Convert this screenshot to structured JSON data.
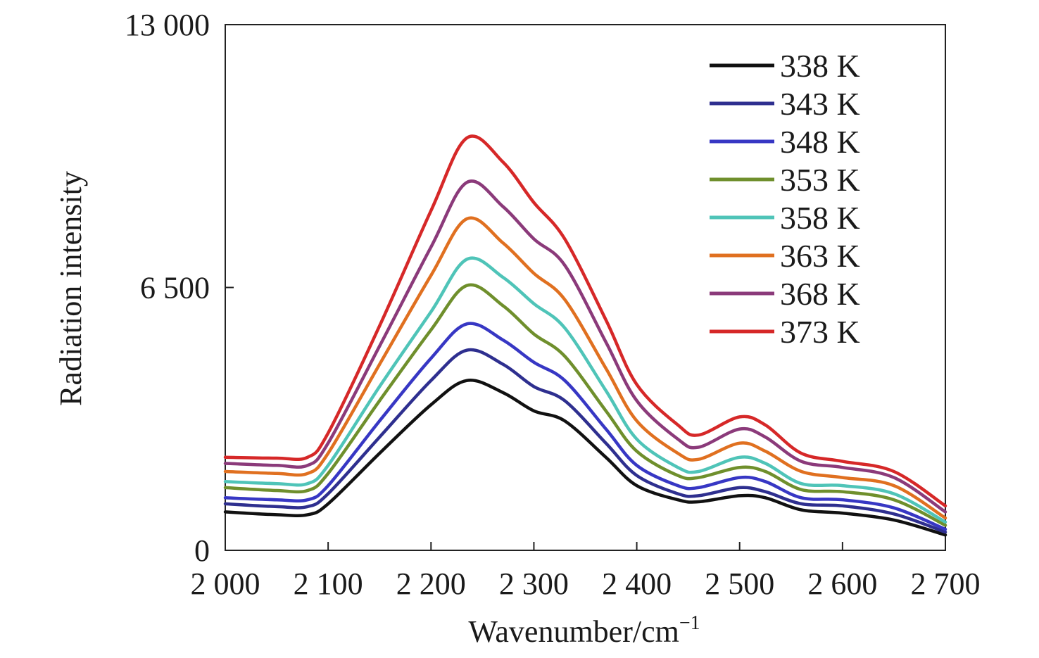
{
  "chart_data": {
    "type": "line",
    "xlabel": "Wavenumber/cm",
    "xlabel_superscript": "−1",
    "ylabel": "Radiation intensity",
    "xlim": [
      2000,
      2700
    ],
    "ylim": [
      0,
      13000
    ],
    "x_ticks": [
      2000,
      2100,
      2200,
      2300,
      2400,
      2500,
      2600,
      2700
    ],
    "x_tick_labels": [
      "2 000",
      "2 100",
      "2 200",
      "2 300",
      "2 400",
      "2 500",
      "2 600",
      "2 700"
    ],
    "y_ticks": [
      0,
      6500,
      13000
    ],
    "y_tick_labels": [
      "0",
      "6 500",
      "13 000"
    ],
    "grid": false,
    "legend_position": "top-right",
    "x": [
      2000,
      2050,
      2080,
      2100,
      2150,
      2200,
      2235,
      2270,
      2300,
      2330,
      2370,
      2400,
      2440,
      2460,
      2500,
      2525,
      2560,
      2600,
      2650,
      2700
    ],
    "series": [
      {
        "name": "338 K",
        "color": "#111111",
        "values": [
          950,
          880,
          880,
          1150,
          2400,
          3600,
          4200,
          3900,
          3450,
          3200,
          2300,
          1600,
          1250,
          1200,
          1350,
          1300,
          1000,
          920,
          750,
          380
        ]
      },
      {
        "name": "343 K",
        "color": "#2e2f8f",
        "values": [
          1150,
          1080,
          1080,
          1400,
          2800,
          4200,
          4950,
          4600,
          4050,
          3700,
          2650,
          1850,
          1400,
          1350,
          1550,
          1450,
          1150,
          1100,
          900,
          450
        ]
      },
      {
        "name": "348 K",
        "color": "#3737c4",
        "values": [
          1300,
          1250,
          1250,
          1600,
          3200,
          4750,
          5600,
          5200,
          4650,
          4200,
          3000,
          2100,
          1600,
          1550,
          1800,
          1700,
          1300,
          1250,
          1050,
          520
        ]
      },
      {
        "name": "353 K",
        "color": "#6f8f2c",
        "values": [
          1550,
          1480,
          1480,
          1900,
          3700,
          5450,
          6550,
          6050,
          5350,
          4800,
          3450,
          2450,
          1850,
          1800,
          2050,
          1950,
          1500,
          1450,
          1250,
          620
        ]
      },
      {
        "name": "358 K",
        "color": "#4fc4b8",
        "values": [
          1700,
          1650,
          1650,
          2100,
          4050,
          5900,
          7200,
          6750,
          6100,
          5500,
          3950,
          2750,
          2050,
          1950,
          2300,
          2150,
          1650,
          1600,
          1400,
          700
        ]
      },
      {
        "name": "363 K",
        "color": "#e07020",
        "values": [
          1950,
          1900,
          1900,
          2400,
          4600,
          6800,
          8200,
          7600,
          6850,
          6200,
          4500,
          3200,
          2400,
          2250,
          2650,
          2450,
          1950,
          1800,
          1600,
          800
        ]
      },
      {
        "name": "368 K",
        "color": "#8b3a7a",
        "values": [
          2150,
          2100,
          2100,
          2650,
          5050,
          7500,
          9100,
          8500,
          7700,
          7050,
          5150,
          3700,
          2750,
          2550,
          3000,
          2800,
          2200,
          2050,
          1800,
          950
        ]
      },
      {
        "name": "373 K",
        "color": "#d62828",
        "values": [
          2300,
          2280,
          2300,
          2900,
          5550,
          8400,
          10200,
          9600,
          8600,
          7700,
          5700,
          4100,
          3100,
          2850,
          3300,
          3100,
          2400,
          2200,
          1950,
          1100
        ]
      }
    ]
  }
}
